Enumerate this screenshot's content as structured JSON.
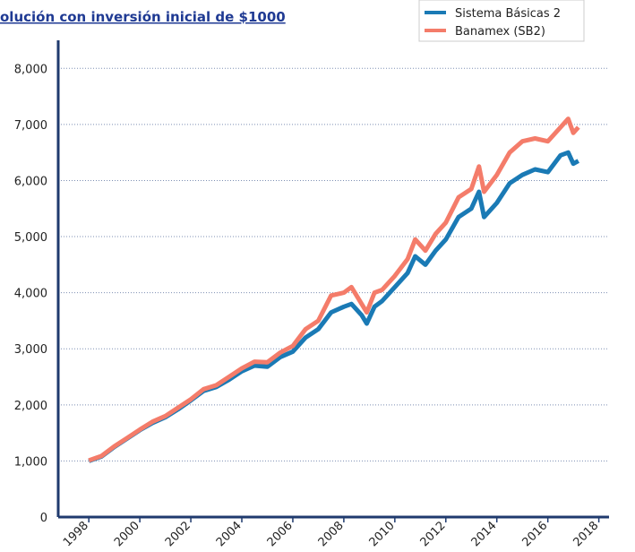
{
  "chart_data": {
    "type": "line",
    "title": "olución con inversión inicial de $1000",
    "x": [
      1998,
      1998.5,
      1999,
      1999.5,
      2000,
      2000.5,
      2001,
      2001.5,
      2002,
      2002.5,
      2003,
      2003.5,
      2004,
      2004.5,
      2005,
      2005.5,
      2006,
      2006.5,
      2007,
      2007.5,
      2008,
      2008.3,
      2008.7,
      2008.9,
      2009.2,
      2009.5,
      2010,
      2010.5,
      2010.8,
      2011.2,
      2011.6,
      2012,
      2012.5,
      2013,
      2013.3,
      2013.5,
      2014,
      2014.5,
      2015,
      2015.5,
      2016,
      2016.5,
      2016.8,
      2017,
      2017.2
    ],
    "series": [
      {
        "name": "Sistema Básicas 2",
        "color": "#1a7ab5",
        "values": [
          1000,
          1080,
          1250,
          1400,
          1550,
          1680,
          1780,
          1920,
          2080,
          2250,
          2320,
          2450,
          2600,
          2700,
          2680,
          2850,
          2950,
          3200,
          3350,
          3650,
          3750,
          3800,
          3600,
          3450,
          3750,
          3850,
          4100,
          4350,
          4650,
          4500,
          4750,
          4950,
          5350,
          5500,
          5800,
          5350,
          5600,
          5950,
          6100,
          6200,
          6150,
          6450,
          6500,
          6300,
          6350
        ]
      },
      {
        "name": "Banamex (SB2)",
        "color": "#f47c6a",
        "values": [
          1010,
          1090,
          1260,
          1410,
          1560,
          1700,
          1800,
          1950,
          2100,
          2280,
          2350,
          2500,
          2650,
          2770,
          2760,
          2930,
          3050,
          3350,
          3500,
          3950,
          4000,
          4100,
          3800,
          3650,
          4000,
          4050,
          4300,
          4600,
          4950,
          4750,
          5050,
          5250,
          5700,
          5850,
          6250,
          5800,
          6100,
          6500,
          6700,
          6750,
          6700,
          6950,
          7100,
          6850,
          6950
        ]
      }
    ],
    "xlim": [
      1996.8,
      2018.4
    ],
    "xticks": [
      1998,
      2000,
      2002,
      2004,
      2006,
      2008,
      2010,
      2012,
      2014,
      2016,
      2018
    ],
    "ylim": [
      0,
      8500
    ],
    "yticks": [
      0,
      {
        "value": 1000,
        "label": "1,000"
      },
      {
        "value": 2000,
        "label": "2,000"
      },
      {
        "value": 3000,
        "label": "3,000"
      },
      {
        "value": 4000,
        "label": "4,000"
      },
      {
        "value": 5000,
        "label": "5,000"
      },
      {
        "value": 6000,
        "label": "6,000"
      },
      {
        "value": 7000,
        "label": "7,000"
      },
      {
        "value": 8000,
        "label": "8,000"
      }
    ],
    "grid": true
  }
}
